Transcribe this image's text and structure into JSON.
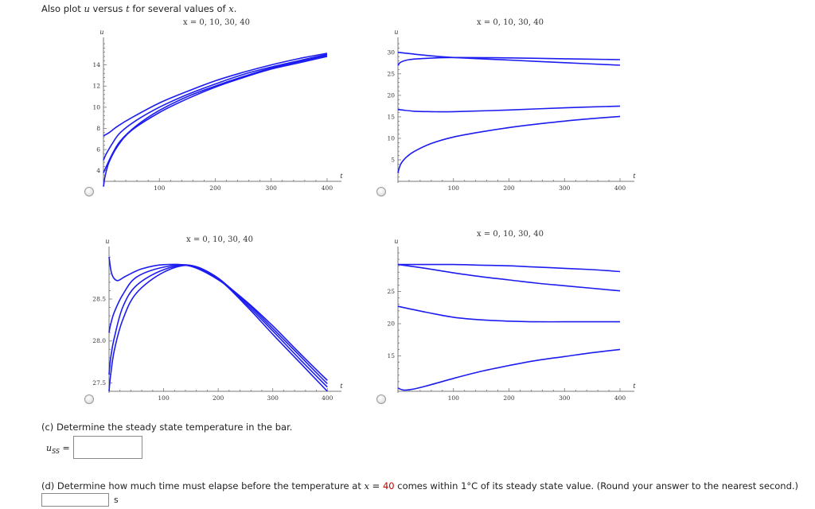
{
  "prompt": {
    "text_before": "Also plot ",
    "var_u": "u",
    "text_mid": " versus ",
    "var_t": "t",
    "text_after": " for several values of ",
    "var_x": "x",
    "text_end": "."
  },
  "plots": [
    {
      "title": "x = 0, 10, 30, 40",
      "ylabel": "u",
      "xlabel": "t",
      "xticks": [
        "100",
        "200",
        "300",
        "400"
      ],
      "yticks": [
        "4",
        "6",
        "8",
        "10",
        "12",
        "14"
      ],
      "xlim": [
        0,
        420
      ],
      "ylim": [
        3,
        16
      ],
      "stroke": "#1c1cf0",
      "series": [
        {
          "name": "curve-1",
          "t": [
            0,
            10,
            25,
            50,
            100,
            150,
            200,
            250,
            300,
            350,
            400
          ],
          "u": [
            7.3,
            7.6,
            8.2,
            9.0,
            10.4,
            11.5,
            12.5,
            13.3,
            14.0,
            14.6,
            15.1
          ]
        },
        {
          "name": "curve-2",
          "t": [
            0,
            5,
            15,
            30,
            60,
            100,
            150,
            200,
            250,
            300,
            350,
            400
          ],
          "u": [
            5.0,
            5.6,
            6.5,
            7.6,
            8.8,
            10.0,
            11.2,
            12.2,
            13.1,
            13.8,
            14.4,
            15.0
          ]
        },
        {
          "name": "curve-3",
          "t": [
            0,
            5,
            15,
            30,
            60,
            100,
            150,
            200,
            250,
            300,
            350,
            400
          ],
          "u": [
            3.8,
            4.4,
            5.5,
            6.8,
            8.3,
            9.7,
            11.0,
            12.0,
            12.9,
            13.7,
            14.3,
            14.9
          ]
        },
        {
          "name": "curve-4",
          "t": [
            0,
            3,
            10,
            25,
            50,
            100,
            150,
            200,
            250,
            300,
            350,
            400
          ],
          "u": [
            2.5,
            3.5,
            4.8,
            6.3,
            7.8,
            9.5,
            10.8,
            11.9,
            12.8,
            13.6,
            14.2,
            14.8
          ]
        }
      ]
    },
    {
      "title": "x = 0, 10, 30, 40",
      "ylabel": "u",
      "xlabel": "t",
      "xticks": [
        "100",
        "200",
        "300",
        "400"
      ],
      "yticks": [
        "5",
        "10",
        "15",
        "20",
        "25",
        "30"
      ],
      "xlim": [
        0,
        420
      ],
      "ylim": [
        0,
        32
      ],
      "stroke": "#1c1cf0",
      "series": [
        {
          "name": "curve-1",
          "t": [
            0,
            50,
            100,
            200,
            300,
            400
          ],
          "u": [
            30,
            29.3,
            28.8,
            28.2,
            27.6,
            27.0
          ]
        },
        {
          "name": "curve-2",
          "t": [
            0,
            5,
            20,
            50,
            100,
            200,
            300,
            400
          ],
          "u": [
            27.0,
            27.7,
            28.3,
            28.6,
            28.8,
            28.7,
            28.5,
            28.3
          ]
        },
        {
          "name": "curve-3",
          "t": [
            0,
            30,
            60,
            100,
            200,
            300,
            400
          ],
          "u": [
            16.7,
            16.3,
            16.2,
            16.2,
            16.6,
            17.1,
            17.5
          ]
        },
        {
          "name": "curve-4",
          "t": [
            0,
            5,
            15,
            30,
            60,
            100,
            150,
            200,
            250,
            300,
            350,
            400
          ],
          "u": [
            2.0,
            4.0,
            5.6,
            7.0,
            8.8,
            10.3,
            11.5,
            12.5,
            13.3,
            14.0,
            14.6,
            15.1
          ]
        }
      ]
    },
    {
      "title": "x = 0, 10, 30, 40",
      "ylabel": "u",
      "xlabel": "t",
      "xticks": [
        "100",
        "200",
        "300",
        "400"
      ],
      "yticks": [
        "27.5",
        "28.0",
        "28.5"
      ],
      "xlim": [
        0,
        420
      ],
      "ylim": [
        27.4,
        29.05
      ],
      "stroke": "#1c1cf0",
      "series": [
        {
          "name": "curve-1",
          "t": [
            0,
            5,
            15,
            30,
            60,
            100,
            150,
            200,
            250,
            300,
            350,
            400
          ],
          "u": [
            29.0,
            28.8,
            28.72,
            28.77,
            28.86,
            28.91,
            28.89,
            28.73,
            28.48,
            28.18,
            27.85,
            27.53
          ]
        },
        {
          "name": "curve-2",
          "t": [
            0,
            3,
            10,
            25,
            50,
            100,
            150,
            200,
            250,
            300,
            350,
            400
          ],
          "u": [
            28.1,
            28.2,
            28.35,
            28.55,
            28.76,
            28.88,
            28.9,
            28.74,
            28.47,
            28.15,
            27.82,
            27.49
          ]
        },
        {
          "name": "curve-3",
          "t": [
            0,
            3,
            10,
            25,
            50,
            100,
            150,
            200,
            250,
            300,
            350,
            400
          ],
          "u": [
            27.6,
            27.8,
            28.05,
            28.4,
            28.66,
            28.85,
            28.9,
            28.75,
            28.45,
            28.12,
            27.78,
            27.45
          ]
        },
        {
          "name": "curve-4",
          "t": [
            0,
            3,
            10,
            25,
            50,
            100,
            150,
            200,
            250,
            300,
            350,
            400
          ],
          "u": [
            27.4,
            27.6,
            27.9,
            28.25,
            28.57,
            28.82,
            28.9,
            28.74,
            28.43,
            28.08,
            27.74,
            27.4
          ]
        }
      ]
    },
    {
      "title": "x = 0, 10, 30, 40",
      "ylabel": "u",
      "xlabel": "t",
      "xticks": [
        "100",
        "200",
        "300",
        "400"
      ],
      "yticks": [
        "15",
        "20",
        "25"
      ],
      "xlim": [
        0,
        420
      ],
      "ylim": [
        9.5,
        31
      ],
      "stroke": "#1c1cf0",
      "series": [
        {
          "name": "curve-1",
          "t": [
            0,
            50,
            100,
            150,
            200,
            250,
            300,
            350,
            400
          ],
          "u": [
            29.2,
            29.2,
            29.2,
            29.1,
            29.0,
            28.8,
            28.6,
            28.4,
            28.1
          ]
        },
        {
          "name": "curve-2",
          "t": [
            0,
            50,
            100,
            150,
            200,
            250,
            300,
            350,
            400
          ],
          "u": [
            29.2,
            28.6,
            27.9,
            27.3,
            26.8,
            26.3,
            25.9,
            25.5,
            25.1
          ]
        },
        {
          "name": "curve-3",
          "t": [
            0,
            50,
            100,
            150,
            200,
            250,
            300,
            350,
            400
          ],
          "u": [
            22.7,
            21.8,
            21.0,
            20.6,
            20.4,
            20.3,
            20.3,
            20.3,
            20.3
          ]
        },
        {
          "name": "curve-4",
          "t": [
            0,
            10,
            25,
            50,
            100,
            150,
            200,
            250,
            300,
            350,
            400
          ],
          "u": [
            10.0,
            9.7,
            9.8,
            10.3,
            11.5,
            12.6,
            13.5,
            14.3,
            14.9,
            15.5,
            16.0
          ]
        }
      ]
    }
  ],
  "part_c": {
    "text": "(c) Determine the steady state temperature in the bar.",
    "label_u": "u",
    "label_sub": "SS",
    "label_eq": "=",
    "value": ""
  },
  "part_d": {
    "text_before": "(d) Determine how much time must elapse before the temperature at ",
    "var_x": "x",
    "eq": " = ",
    "x_value": "40",
    "text_after": " comes within 1°C of its steady state value. (Round your answer to the nearest second.)",
    "value": "",
    "unit": "s"
  }
}
